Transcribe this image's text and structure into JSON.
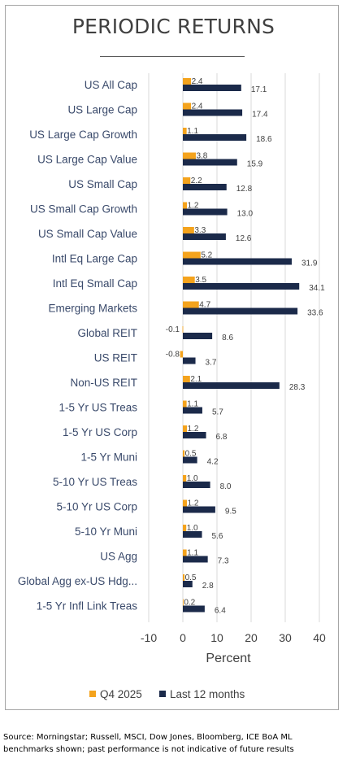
{
  "title": "PERIODIC RETURNS",
  "source": "Source: Morningstar; Russell, MSCI, Dow Jones, Bloomberg, ICE BoA ML benchmarks shown; past performance is not indicative of future results",
  "colors": {
    "q4": "#f4a31d",
    "ltm": "#1b2a4a",
    "grid": "#d9d9d9",
    "label": "#3a4a6b"
  },
  "chart_data": {
    "type": "bar",
    "orientation": "horizontal",
    "categories": [
      "US All Cap",
      "US Large Cap",
      "US Large Cap Growth",
      "US Large Cap Value",
      "US Small Cap",
      "US Small Cap Growth",
      "US Small Cap Value",
      "Intl Eq Large Cap",
      "Intl Eq Small Cap",
      "Emerging Markets",
      "Global REIT",
      "US REIT",
      "Non-US REIT",
      "1-5 Yr US Treas",
      "1-5 Yr US Corp",
      "1-5 Yr Muni",
      "5-10 Yr US Treas",
      "5-10 Yr US Corp",
      "5-10 Yr Muni",
      "US Agg",
      "Global Agg ex-US Hdg...",
      "1-5 Yr Infl Link Treas"
    ],
    "series": [
      {
        "name": "Q4 2025",
        "values": [
          2.4,
          2.4,
          1.1,
          3.8,
          2.2,
          1.2,
          3.3,
          5.2,
          3.5,
          4.7,
          -0.1,
          -0.8,
          2.1,
          1.1,
          1.2,
          0.5,
          1.0,
          1.2,
          1.0,
          1.1,
          0.5,
          0.2
        ],
        "labels": [
          "2.4",
          "2.4",
          "1.1",
          "3.8",
          "2.2",
          "1.2",
          "3.3",
          "5.2",
          "3.5",
          "4.7",
          "-0.1",
          "-0.8",
          "2.1",
          "1.1",
          "1.2",
          "0.5",
          "1.0",
          "1.2",
          "1.0",
          "1.1",
          "0.5",
          "0.2"
        ]
      },
      {
        "name": "Last 12 months",
        "values": [
          17.1,
          17.4,
          18.6,
          15.9,
          12.8,
          13.0,
          12.6,
          31.9,
          34.1,
          33.6,
          8.6,
          3.7,
          28.3,
          5.7,
          6.8,
          4.2,
          8.0,
          9.5,
          5.6,
          7.3,
          2.8,
          6.4
        ],
        "labels": [
          "17.1",
          "17.4",
          "18.6",
          "15.9",
          "12.8",
          "13.0",
          "12.6",
          "31.9",
          "34.1",
          "33.6",
          "8.6",
          "3.7",
          "28.3",
          "5.7",
          "6.8",
          "4.2",
          "8.0",
          "9.5",
          "5.6",
          "7.3",
          "2.8",
          "6.4"
        ]
      }
    ],
    "xlabel": "Percent",
    "xlim": [
      -10,
      40
    ],
    "xticks": [
      -10,
      0,
      10,
      20,
      30,
      40
    ],
    "xtick_labels": [
      "-10",
      "0",
      "10",
      "20",
      "30",
      "40"
    ],
    "grid": "vertical",
    "legend": "bottom"
  }
}
